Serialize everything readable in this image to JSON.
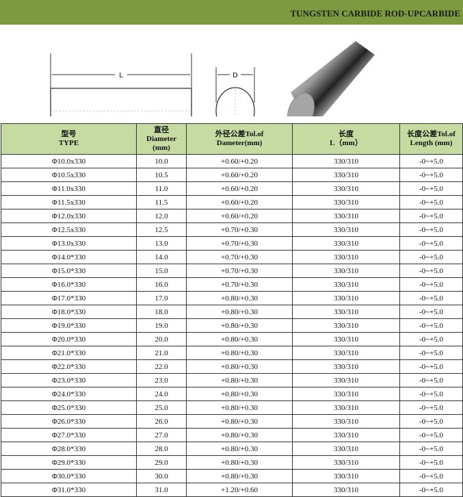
{
  "banner": {
    "title": "TUNGSTEN CARBIDE ROD-UPCARBIDE"
  },
  "figure": {
    "length_label": "L",
    "diameter_label": "D"
  },
  "table": {
    "headers": [
      {
        "line1": "型号",
        "line2": "TYPE",
        "line3": ""
      },
      {
        "line1": "直径",
        "line2": "Diameter",
        "line3": "(mm)"
      },
      {
        "line1": "外径公差Tol.of",
        "line2": "Dameter(mm)",
        "line3": ""
      },
      {
        "line1": "长度",
        "line2": "L（mm）",
        "line3": ""
      },
      {
        "line1": "长度公差Tol.of",
        "line2": "Length (mm)",
        "line3": ""
      }
    ],
    "rows": [
      [
        "Φ10.0x330",
        "10.0",
        "+0.60/+0.20",
        "330/310",
        "-0~+5.0"
      ],
      [
        "Φ10.5x330",
        "10.5",
        "+0.60/+0.20",
        "330/310",
        "-0~+5.0"
      ],
      [
        "Φ11.0x330",
        "11.0",
        "+0.60/+0.20",
        "330/310",
        "-0~+5.0"
      ],
      [
        "Φ11.5x330",
        "11.5",
        "+0.60/+0.20",
        "330/310",
        "-0~+5.0"
      ],
      [
        "Φ12.0x330",
        "12.0",
        "+0.60/+0.20",
        "330/310",
        "-0~+5.0"
      ],
      [
        "Φ12.5x330",
        "12.5",
        "+0.70/+0.30",
        "330/310",
        "-0~+5.0"
      ],
      [
        "Φ13.0x330",
        "13.0",
        "+0.70/+0.30",
        "330/310",
        "-0~+5.0"
      ],
      [
        "Φ14.0*330",
        "14.0",
        "+0.70/+0.30",
        "330/310",
        "-0~+5.0"
      ],
      [
        "Φ15.0*330",
        "15.0",
        "+0.70/+0.30",
        "330/310",
        "-0~+5.0"
      ],
      [
        "Φ16.0*330",
        "16.0",
        "+0.70/+0.30",
        "330/310",
        "-0~+5.0"
      ],
      [
        "Φ17.0*330",
        "17.0",
        "+0.80/+0.30",
        "330/310",
        "-0~+5.0"
      ],
      [
        "Φ18.0*330",
        "18.0",
        "+0.80/+0.30",
        "330/310",
        "-0~+5.0"
      ],
      [
        "Φ19.0*330",
        "19.0",
        "+0.80/+0.30",
        "330/310",
        "-0~+5.0"
      ],
      [
        "Φ20.0*330",
        "20.0",
        "+0.80/+0.30",
        "330/310",
        "-0~+5.0"
      ],
      [
        "Φ21.0*330",
        "21.0",
        "+0.80/+0.30",
        "330/310",
        "-0~+5.0"
      ],
      [
        "Φ22.0*330",
        "22.0",
        "+0.80/+0.30",
        "330/310",
        "-0~+5.0"
      ],
      [
        "Φ23.0*330",
        "23.0",
        "+0.80/+0.30",
        "330/310",
        "-0~+5.0"
      ],
      [
        "Φ24.0*330",
        "24.0",
        "+0.80/+0.30",
        "330/310",
        "-0~+5.0"
      ],
      [
        "Φ25.0*330",
        "25.0",
        "+0.80/+0.30",
        "330/310",
        "-0~+5.0"
      ],
      [
        "Φ26.0*330",
        "26.0",
        "+0.80/+0.30",
        "330/310",
        "-0~+5.0"
      ],
      [
        "Φ27.0*330",
        "27.0",
        "+0.80/+0.30",
        "330/310",
        "-0~+5.0"
      ],
      [
        "Φ28.0*330",
        "28.0",
        "+0.80/+0.30",
        "330/310",
        "-0~+5.0"
      ],
      [
        "Φ29.0*330",
        "29.0",
        "+0.80/+0.30",
        "330/310",
        "-0~+5.0"
      ],
      [
        "Φ30.0*330",
        "30.0",
        "+0.80/+0.30",
        "330/310",
        "-0~+5.0"
      ],
      [
        "Φ31.0*330",
        "31.0",
        "+1.20/+0.60",
        "330/310",
        "-0~+5.0"
      ]
    ]
  }
}
